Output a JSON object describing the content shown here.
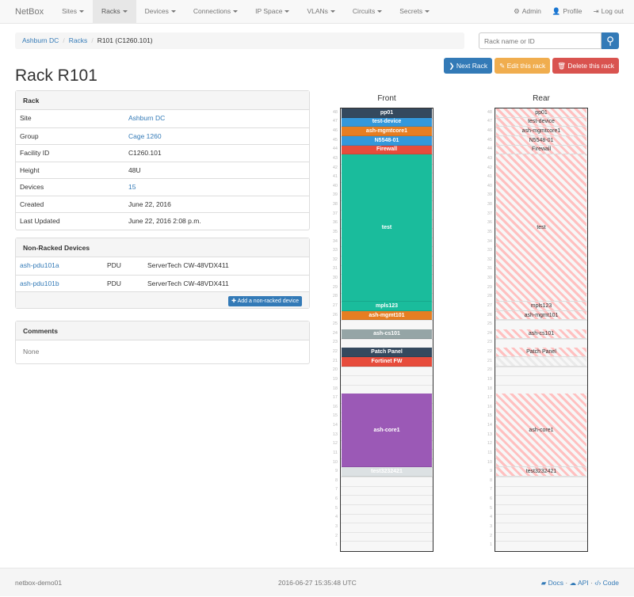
{
  "nav": {
    "brand": "NetBox",
    "items": [
      "Sites",
      "Racks",
      "Devices",
      "Connections",
      "IP Space",
      "VLANs",
      "Circuits",
      "Secrets"
    ],
    "active": "Racks",
    "right": [
      {
        "icon": "gear-icon",
        "glyph": "⚙",
        "label": "Admin"
      },
      {
        "icon": "user-icon",
        "glyph": "👤",
        "label": "Profile"
      },
      {
        "icon": "logout-icon",
        "glyph": "⇥",
        "label": "Log out"
      }
    ]
  },
  "breadcrumb": [
    "Ashburn DC",
    "Racks",
    "R101 (C1260.101)"
  ],
  "search": {
    "placeholder": "Rack name or ID",
    "icon": "search-icon"
  },
  "buttons": {
    "next": "Next Rack",
    "edit": "Edit this rack",
    "delete": "Delete this rack"
  },
  "title": "Rack R101",
  "rack_panel": {
    "heading": "Rack",
    "rows": [
      {
        "k": "Site",
        "v": "Ashburn DC",
        "link": true
      },
      {
        "k": "Group",
        "v": "Cage 1260",
        "link": true
      },
      {
        "k": "Facility ID",
        "v": "C1260.101"
      },
      {
        "k": "Height",
        "v": "48U"
      },
      {
        "k": "Devices",
        "v": "15",
        "link": true
      },
      {
        "k": "Created",
        "v": "June 22, 2016"
      },
      {
        "k": "Last Updated",
        "v": "June 22, 2016 2:08 p.m."
      }
    ]
  },
  "nonracked": {
    "heading": "Non-Racked Devices",
    "rows": [
      {
        "name": "ash-pdu101a",
        "role": "PDU",
        "type": "ServerTech CW-48VDX411"
      },
      {
        "name": "ash-pdu101b",
        "role": "PDU",
        "type": "ServerTech CW-48VDX411"
      }
    ],
    "add_label": "Add a non-racked device"
  },
  "comments": {
    "heading": "Comments",
    "body": "None"
  },
  "rack": {
    "front_label": "Front",
    "rear_label": "Rear",
    "units": 48,
    "devices": [
      {
        "name": "pp01",
        "position": 48,
        "height": 1,
        "color": "#34495e"
      },
      {
        "name": "test-device",
        "position": 47,
        "height": 1,
        "color": "#3498db"
      },
      {
        "name": "ash-mgmtcore1",
        "position": 46,
        "height": 1,
        "color": "#e67e22"
      },
      {
        "name": "N5548-01",
        "position": 45,
        "height": 1,
        "color": "#3498db"
      },
      {
        "name": "Firewall",
        "position": 44,
        "height": 1,
        "color": "#e74c3c"
      },
      {
        "name": "test",
        "position": 28,
        "height": 16,
        "color": "#1abc9c"
      },
      {
        "name": "mpls123",
        "position": 27,
        "height": 1,
        "color": "#1abc9c"
      },
      {
        "name": "ash-mgmt101",
        "position": 26,
        "height": 1,
        "color": "#e67e22"
      },
      {
        "name": "ash-cs101",
        "position": 24,
        "height": 1,
        "color": "#95a5a6"
      },
      {
        "name": "Patch Panel",
        "position": 22,
        "height": 1,
        "color": "#34495e"
      },
      {
        "name": "Fortinet FW",
        "position": 21,
        "height": 1,
        "color": "#e74c3c",
        "full_depth": false
      },
      {
        "name": "ash-core1",
        "position": 10,
        "height": 8,
        "color": "#9b59b6"
      },
      {
        "name": "test3232421",
        "position": 9,
        "height": 1,
        "color": "#dce1e3"
      }
    ]
  },
  "footer": {
    "host": "netbox-demo01",
    "time": "2016-06-27 15:35:48 UTC",
    "links": [
      {
        "icon": "book-icon",
        "glyph": "▰",
        "label": "Docs"
      },
      {
        "icon": "cloud-icon",
        "glyph": "☁",
        "label": "API"
      },
      {
        "icon": "code-icon",
        "glyph": "‹/›",
        "label": "Code"
      }
    ]
  }
}
